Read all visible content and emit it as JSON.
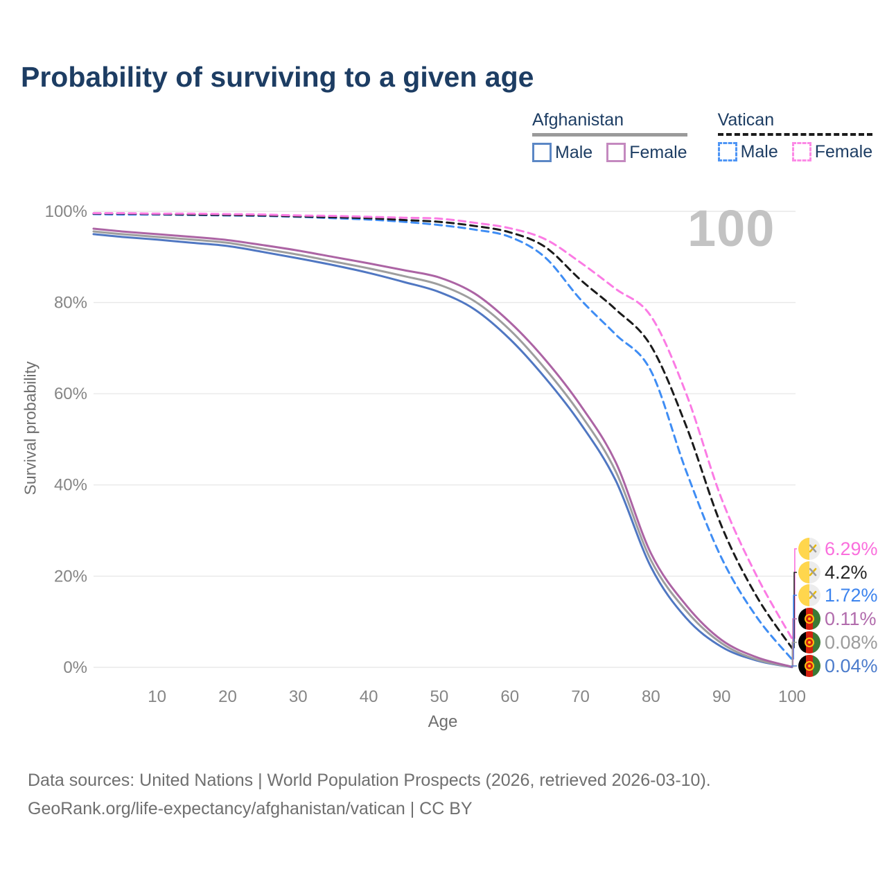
{
  "title": "Probability of surviving to a given age",
  "watermark_age": "100",
  "legend": {
    "groups": [
      {
        "label": "Afghanistan",
        "style": "solid",
        "underline_color": "#9a9a9a",
        "items": [
          {
            "label": "Male",
            "color": "#5B87C5",
            "dashed": false
          },
          {
            "label": "Female",
            "color": "#C489BF",
            "dashed": false
          }
        ]
      },
      {
        "label": "Vatican",
        "style": "dashed",
        "underline_color": "#1b1b1b",
        "items": [
          {
            "label": "Male",
            "color": "#4E95F5",
            "dashed": true
          },
          {
            "label": "Female",
            "color": "#FC8AE6",
            "dashed": true
          }
        ]
      }
    ]
  },
  "chart_data": {
    "type": "line",
    "title": "Probability of surviving to a given age",
    "xlabel": "Age",
    "ylabel": "Survival probability",
    "xlim": [
      1,
      100
    ],
    "ylim": [
      0,
      100
    ],
    "grid": true,
    "legend_position": "top-right",
    "x_ticks": [
      10,
      20,
      30,
      40,
      50,
      60,
      70,
      80,
      90,
      100
    ],
    "y_ticks": [
      0,
      20,
      40,
      60,
      80,
      100
    ],
    "y_tick_suffix": "%",
    "x": [
      1,
      5,
      10,
      15,
      20,
      25,
      30,
      35,
      40,
      45,
      50,
      55,
      60,
      65,
      70,
      75,
      80,
      85,
      90,
      95,
      100
    ],
    "series": [
      {
        "name": "Afghanistan Male",
        "country": "afghanistan",
        "sex": "male",
        "dashed": false,
        "color": "#5077C2",
        "end_label": "0.04%",
        "end_label_color": "#4C7CCC",
        "values": [
          95.0,
          94.4,
          93.8,
          93.1,
          92.4,
          91.1,
          89.7,
          88.2,
          86.5,
          84.5,
          82.3,
          78.5,
          72.0,
          63.5,
          53.5,
          41.0,
          22.0,
          10.8,
          4.5,
          1.5,
          0.04
        ]
      },
      {
        "name": "Afghanistan",
        "country": "afghanistan",
        "sex": "total",
        "dashed": false,
        "color": "#9E9E9E",
        "end_label": "0.08%",
        "end_label_color": "#9B9B9B",
        "values": [
          95.6,
          95.0,
          94.4,
          93.8,
          93.1,
          91.8,
          90.5,
          89.0,
          87.5,
          85.8,
          83.9,
          80.3,
          74.0,
          65.5,
          55.5,
          43.0,
          23.5,
          12.4,
          5.3,
          1.7,
          0.08
        ]
      },
      {
        "name": "Afghanistan Female",
        "country": "afghanistan",
        "sex": "female",
        "dashed": false,
        "color": "#AC64A4",
        "end_label": "0.11%",
        "end_label_color": "#B16BAC",
        "values": [
          96.2,
          95.6,
          95.0,
          94.4,
          93.7,
          92.6,
          91.4,
          90.0,
          88.6,
          87.1,
          85.5,
          82.0,
          75.7,
          67.5,
          57.5,
          45.0,
          25.0,
          13.6,
          6.0,
          2.2,
          0.11
        ]
      },
      {
        "name": "Vatican Male",
        "country": "vatican",
        "sex": "male",
        "dashed": true,
        "color": "#3F8DF4",
        "end_label": "1.72%",
        "end_label_color": "#3D84EE",
        "values": [
          99.4,
          99.3,
          99.3,
          99.2,
          99.1,
          99.0,
          98.8,
          98.5,
          98.2,
          97.7,
          97.0,
          96.0,
          94.4,
          89.9,
          80.7,
          73.0,
          65.0,
          43.0,
          24.0,
          11.0,
          1.72
        ]
      },
      {
        "name": "Vatican",
        "country": "vatican",
        "sex": "total",
        "dashed": true,
        "color": "#1B1B1B",
        "end_label": "4.2%",
        "end_label_color": "#262626",
        "values": [
          99.5,
          99.5,
          99.4,
          99.3,
          99.2,
          99.1,
          98.9,
          98.7,
          98.5,
          98.1,
          97.7,
          96.8,
          95.4,
          92.2,
          85.0,
          78.5,
          70.5,
          52.9,
          31.0,
          15.5,
          4.2
        ]
      },
      {
        "name": "Vatican Female",
        "country": "vatican",
        "sex": "female",
        "dashed": true,
        "color": "#FB7BE4",
        "end_label": "6.29%",
        "end_label_color": "#FA6FDD",
        "values": [
          99.6,
          99.6,
          99.5,
          99.5,
          99.4,
          99.3,
          99.1,
          99.0,
          98.8,
          98.6,
          98.4,
          97.5,
          96.3,
          93.9,
          88.8,
          83.0,
          77.0,
          60.0,
          37.0,
          20.0,
          6.29
        ]
      }
    ],
    "colors": {
      "gridline": "#e8e8e8",
      "tick_text": "#858585",
      "axis_title_text": "#6e6e6e",
      "title_text": "#1d3d63",
      "watermark": "#c3c3c3"
    }
  },
  "flags": {
    "vatican": {
      "left": "#FFD64D",
      "right": "#ECECEC",
      "key_gold": "#E3B810",
      "key_gray": "#9C9C9C"
    },
    "afghanistan": {
      "black": "#000000",
      "red": "#D32011",
      "green": "#3D7A36",
      "emblem": "#FFC20E"
    }
  },
  "footer": {
    "line1": "Data sources: United Nations | World Population Prospects (2026, retrieved 2026-03-10).",
    "line2": "GeoRank.org/life-expectancy/afghanistan/vatican | CC BY"
  }
}
